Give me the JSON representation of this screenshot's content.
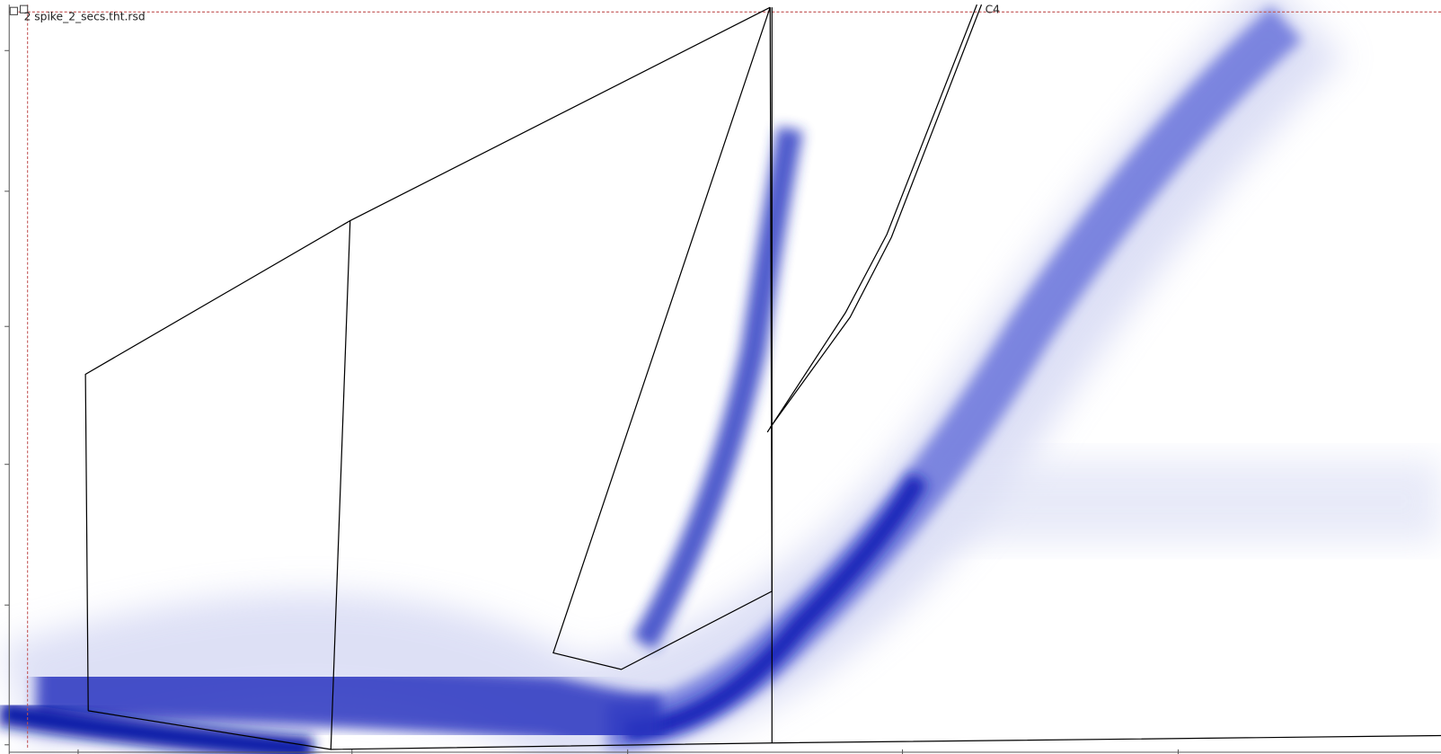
{
  "window": {
    "title": "2 spike_2_secs.tht.rsd"
  },
  "regions": [
    {
      "label": "C4"
    }
  ]
}
